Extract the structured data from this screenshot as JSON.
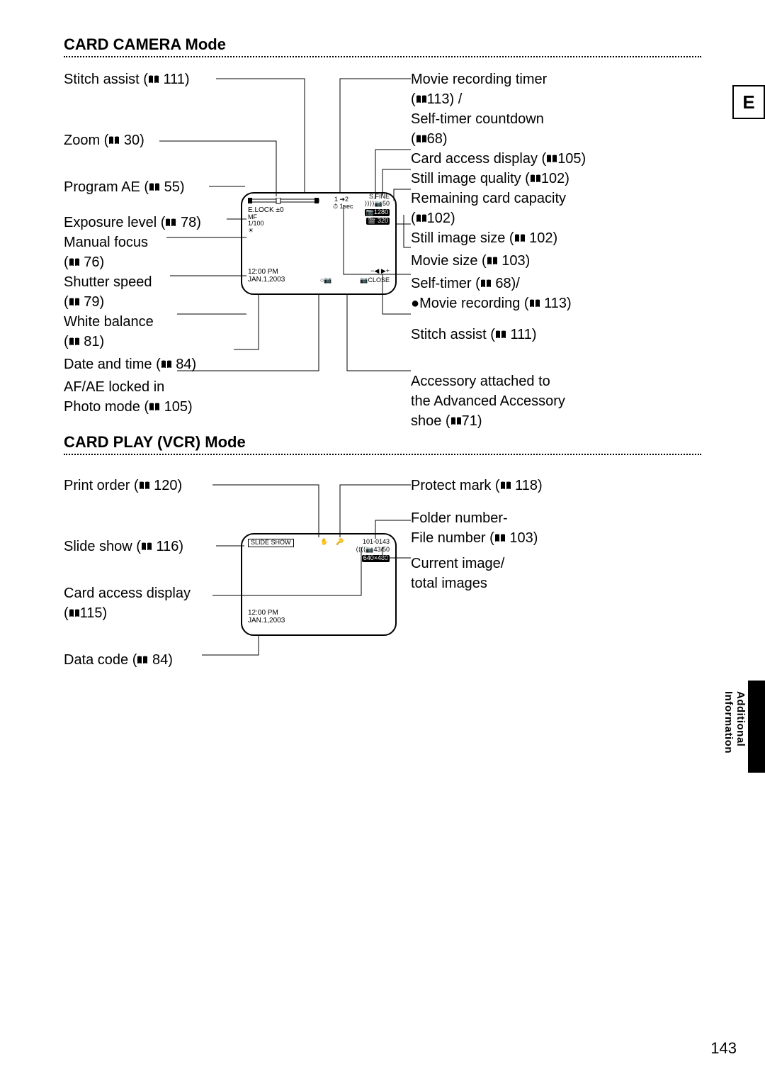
{
  "page_number": "143",
  "lang_indicator": "E",
  "side_label": "Additional\nInformation",
  "sections": {
    "camera": {
      "title": "CARD CAMERA Mode",
      "left_labels": {
        "stitch": "Stitch assist (📖 111)",
        "zoom": "Zoom (📖 30)",
        "program_ae": "Program AE (📖 55)",
        "exposure": "Exposure level (📖 78)",
        "manual_focus": "Manual focus",
        "manual_focus_ref": "(📖 76)",
        "shutter": "Shutter speed",
        "shutter_ref": "(📖 79)",
        "white_balance": "White balance",
        "white_balance_ref": "(📖 81)",
        "date_time": "Date and time (📖 84)",
        "af_ae": "AF/AE locked in",
        "photo_mode": "Photo mode (📖 105)"
      },
      "right_labels": {
        "movie_timer": "Movie recording timer",
        "movie_timer_ref": "(📖113) /",
        "self_timer_cd": "Self-timer countdown",
        "self_timer_cd_ref": "(📖68)",
        "card_access": "Card access display (📖105)",
        "still_quality": "Still image quality (📖102)",
        "remaining": "Remaining card capacity",
        "remaining_ref": "(📖102)",
        "still_size": "Still image size (📖 102)",
        "movie_size": "Movie size (📖 103)",
        "self_timer": "Self-timer (📖 68)/",
        "movie_rec": "●Movie recording (📖 113)",
        "stitch_r": "Stitch assist (📖 111)",
        "accessory": "Accessory attached to",
        "accessory2": "the Advanced Accessory",
        "accessory_ref": "shoe (📖71)"
      },
      "screen": {
        "elock": "E.LOCK  ±0",
        "mf": "MF",
        "shutter_val": "1/100",
        "time": "12:00 PM",
        "date": "JAN.1,2003",
        "sfine": "S.FINE",
        "arrows_count": "⟩⟩⟩⟩📷50",
        "size1": "📷1280",
        "size2": "🎬 320",
        "seq": "1 ➔2",
        "timer": "⏱ 1sec",
        "close": "📷CLOSE",
        "stitch_icons": "−◀ ▶+"
      }
    },
    "play": {
      "title": "CARD PLAY (VCR) Mode",
      "left_labels": {
        "print_order": "Print order (📖 120)",
        "slide_show": "Slide show (📖 116)",
        "card_access": "Card access display",
        "card_access_ref": "(📖115)",
        "data_code": "Data code (📖 84)"
      },
      "right_labels": {
        "protect": "Protect mark (📖 118)",
        "folder": "Folder number-",
        "file": "File number (📖 103)",
        "current": "Current image/",
        "total": "total images"
      },
      "screen": {
        "slideshow": "SLIDE SHOW",
        "folder_file": "101-0143",
        "count": "⟨⟨⟨⟨📷43/50",
        "res": "640×480",
        "time": "12:00 PM",
        "date": "JAN.1,2003",
        "hand": "✋",
        "key": "🔑"
      }
    }
  }
}
